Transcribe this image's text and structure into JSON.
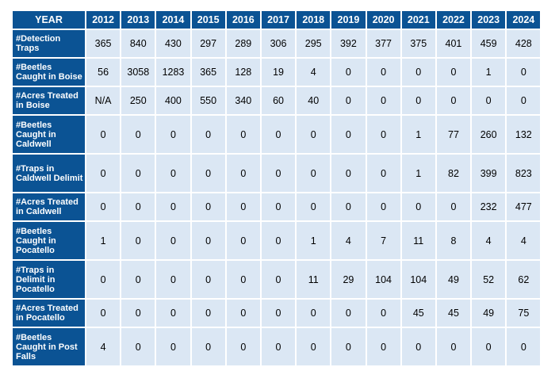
{
  "table": {
    "corner_header": "YEAR",
    "years": [
      "2012",
      "2013",
      "2014",
      "2015",
      "2016",
      "2017",
      "2018",
      "2019",
      "2020",
      "2021",
      "2022",
      "2023",
      "2024"
    ],
    "rows": [
      {
        "label": "#Detection Traps",
        "values": [
          "365",
          "840",
          "430",
          "297",
          "289",
          "306",
          "295",
          "392",
          "377",
          "375",
          "401",
          "459",
          "428"
        ]
      },
      {
        "label": "#Beetles Caught in Boise",
        "values": [
          "56",
          "3058",
          "1283",
          "365",
          "128",
          "19",
          "4",
          "0",
          "0",
          "0",
          "0",
          "1",
          "0"
        ]
      },
      {
        "label": "#Acres Treated in Boise",
        "values": [
          "N/A",
          "250",
          "400",
          "550",
          "340",
          "60",
          "40",
          "0",
          "0",
          "0",
          "0",
          "0",
          "0"
        ]
      },
      {
        "label": "#Beetles Caught in Caldwell",
        "values": [
          "0",
          "0",
          "0",
          "0",
          "0",
          "0",
          "0",
          "0",
          "0",
          "1",
          "77",
          "260",
          "132"
        ]
      },
      {
        "label": "#Traps in Caldwell Delimit",
        "values": [
          "0",
          "0",
          "0",
          "0",
          "0",
          "0",
          "0",
          "0",
          "0",
          "1",
          "82",
          "399",
          "823"
        ]
      },
      {
        "label": "#Acres Treated in Caldwell",
        "values": [
          "0",
          "0",
          "0",
          "0",
          "0",
          "0",
          "0",
          "0",
          "0",
          "0",
          "0",
          "232",
          "477"
        ]
      },
      {
        "label": "#Beetles Caught in Pocatello",
        "values": [
          "1",
          "0",
          "0",
          "0",
          "0",
          "0",
          "1",
          "4",
          "7",
          "11",
          "8",
          "4",
          "4"
        ]
      },
      {
        "label": "#Traps in Delimit in Pocatello",
        "values": [
          "0",
          "0",
          "0",
          "0",
          "0",
          "0",
          "11",
          "29",
          "104",
          "104",
          "49",
          "52",
          "62"
        ]
      },
      {
        "label": "#Acres Treated in Pocatello",
        "values": [
          "0",
          "0",
          "0",
          "0",
          "0",
          "0",
          "0",
          "0",
          "0",
          "45",
          "45",
          "49",
          "75"
        ]
      },
      {
        "label": "#Beetles Caught in Post Falls",
        "values": [
          "4",
          "0",
          "0",
          "0",
          "0",
          "0",
          "0",
          "0",
          "0",
          "0",
          "0",
          "0",
          "0"
        ]
      }
    ]
  },
  "colors": {
    "header_bg": "#0b5394",
    "cell_bg": "#dbe7f4",
    "header_text": "#ffffff"
  }
}
